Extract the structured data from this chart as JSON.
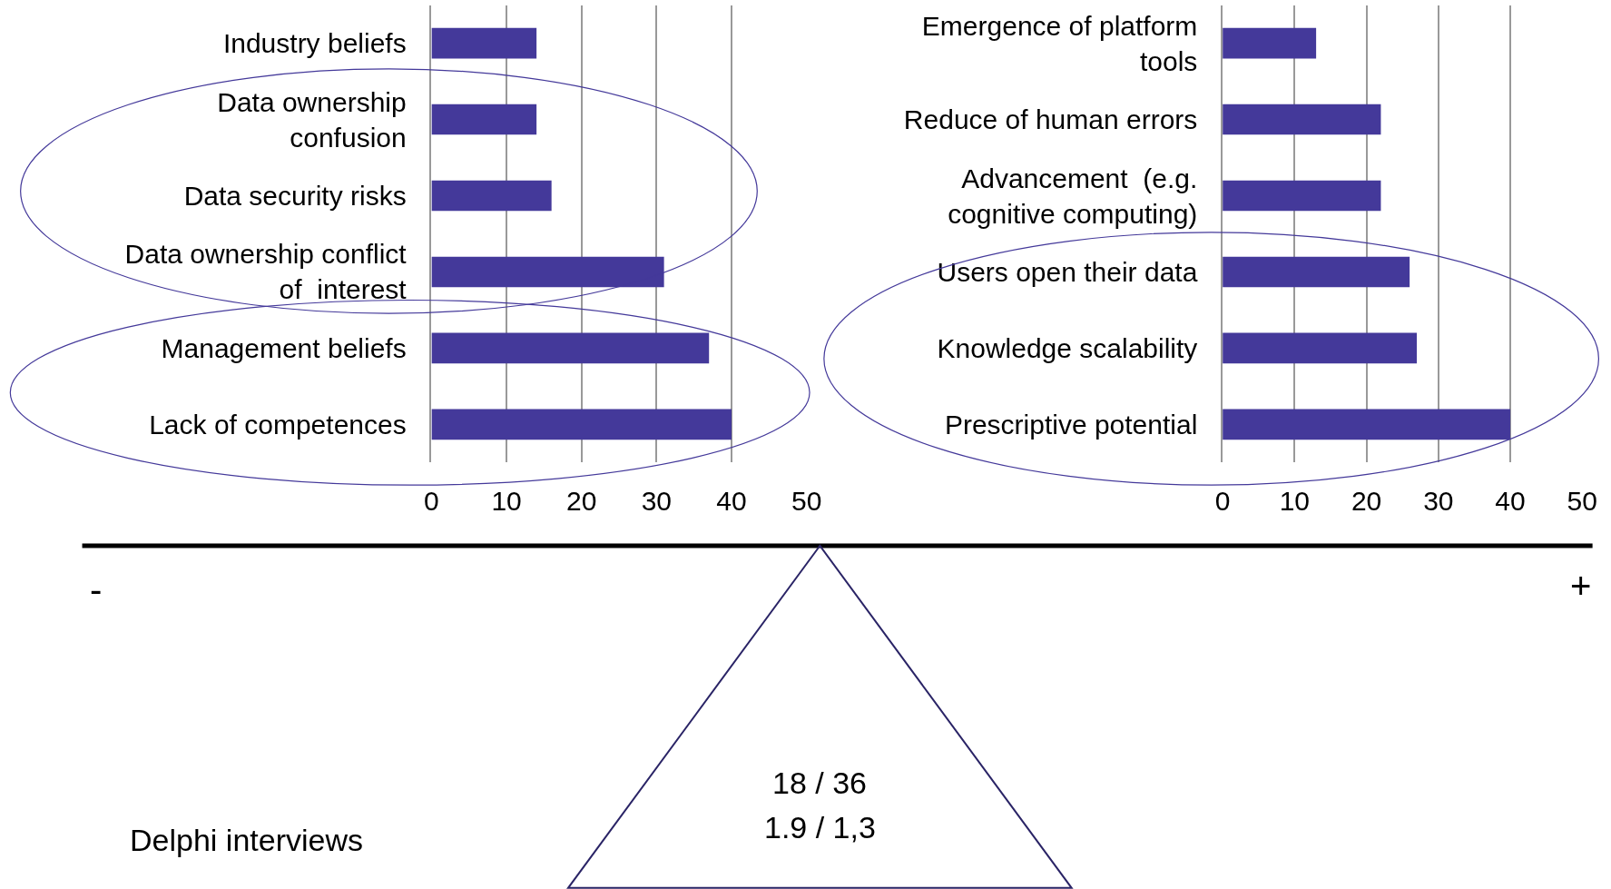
{
  "chart_data": [
    {
      "type": "bar",
      "orientation": "horizontal",
      "categories": [
        "Industry beliefs",
        "Data ownership\nconfusion",
        "Data security risks",
        "Data ownership conflict\nof  interest",
        "Management beliefs",
        "Lack of competences"
      ],
      "values": [
        14,
        14,
        16,
        31,
        37,
        40
      ],
      "color": "#44399a",
      "xlim": [
        0,
        50
      ],
      "xticks": [
        0,
        10,
        20,
        30,
        40,
        50
      ],
      "grid": "x",
      "annotations": [
        "-",
        "+",
        "18 / 36",
        "1.9 / 1,3",
        "Delphi interviews"
      ]
    },
    {
      "type": "bar",
      "orientation": "horizontal",
      "categories": [
        "Emergence of platform\ntools",
        "Reduce of human errors",
        "Advancement  (e.g.\ncognitive computing)",
        "Users open their data",
        "Knowledge scalability",
        "Prescriptive potential"
      ],
      "values": [
        13,
        22,
        22,
        26,
        27,
        40
      ],
      "color": "#44399a",
      "xlim": [
        0,
        50
      ],
      "xticks": [
        0,
        10,
        20,
        30,
        40,
        50
      ],
      "grid": "x"
    }
  ]
}
